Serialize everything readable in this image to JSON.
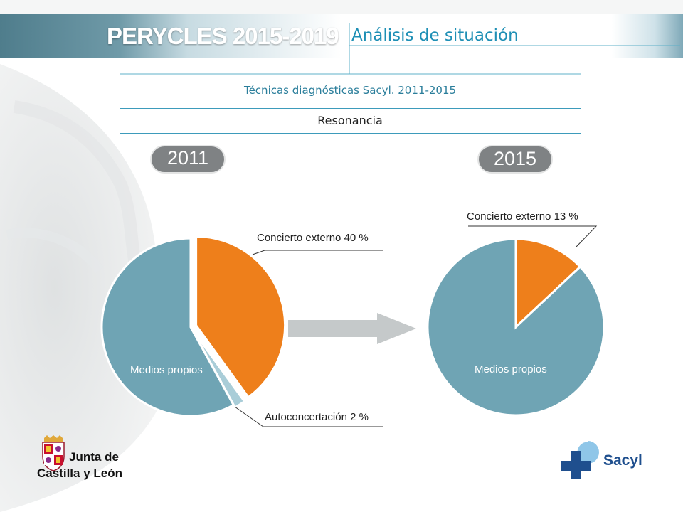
{
  "header": {
    "brand": "PERYCLES 2015-2019",
    "section_title": "Análisis de situación"
  },
  "slide": {
    "subtitle": "Técnicas diagnósticas Sacyl. 2011-2015",
    "box_label": "Resonancia"
  },
  "chart_data": [
    {
      "type": "pie",
      "title": "2011",
      "slices": [
        {
          "label": "Concierto externo 40 %",
          "value": 40,
          "color": "#ee7f1b"
        },
        {
          "label": "Autoconcertación 2 %",
          "value": 2,
          "color": "#a9cdd8"
        },
        {
          "label": "Medios propios",
          "value": 58,
          "color": "#6fa4b4"
        }
      ]
    },
    {
      "type": "pie",
      "title": "2015",
      "slices": [
        {
          "label": "Concierto externo 13 %",
          "value": 13,
          "color": "#ee7f1b"
        },
        {
          "label": "Medios propios",
          "value": 87,
          "color": "#6fa4b4"
        }
      ]
    }
  ],
  "logos": {
    "junta_line1": "Junta de",
    "junta_line2": "Castilla y León",
    "sacyl": "Sacyl"
  },
  "colors": {
    "accent": "#1e8fb5",
    "orange": "#ee7f1b",
    "teal": "#6fa4b4",
    "badge_gray": "#7f8284",
    "sacyl_blue": "#1f4f8e"
  }
}
